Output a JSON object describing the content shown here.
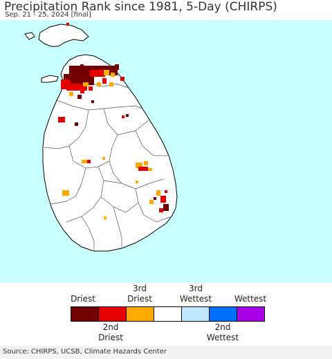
{
  "header": {
    "title": "Precipitation Rank since 1981, 5-Day (CHIRPS)",
    "subtitle": "Sep. 21 - 25, 2024 [final]"
  },
  "map": {
    "ocean_color": "#c8ffff",
    "land_color": "#ffffff",
    "border_color": "#000000"
  },
  "legend": {
    "top_labels": [
      {
        "text": "Driest",
        "line2": ""
      },
      {
        "text": "3rd",
        "line2": "Driest"
      },
      {
        "text": "3rd",
        "line2": "Wettest"
      },
      {
        "text": "Wettest",
        "line2": ""
      }
    ],
    "bottom_labels": [
      {
        "text": "2nd",
        "line2": "Driest"
      },
      {
        "text": "2nd",
        "line2": "Wettest"
      }
    ],
    "colors": [
      "#730000",
      "#e60000",
      "#ffaa00",
      "#ffffff",
      "#bee8ff",
      "#0070ff",
      "#a800e6"
    ]
  },
  "footer": {
    "source": "Source: CHIRPS, UCSB, Climate Hazards Center"
  }
}
